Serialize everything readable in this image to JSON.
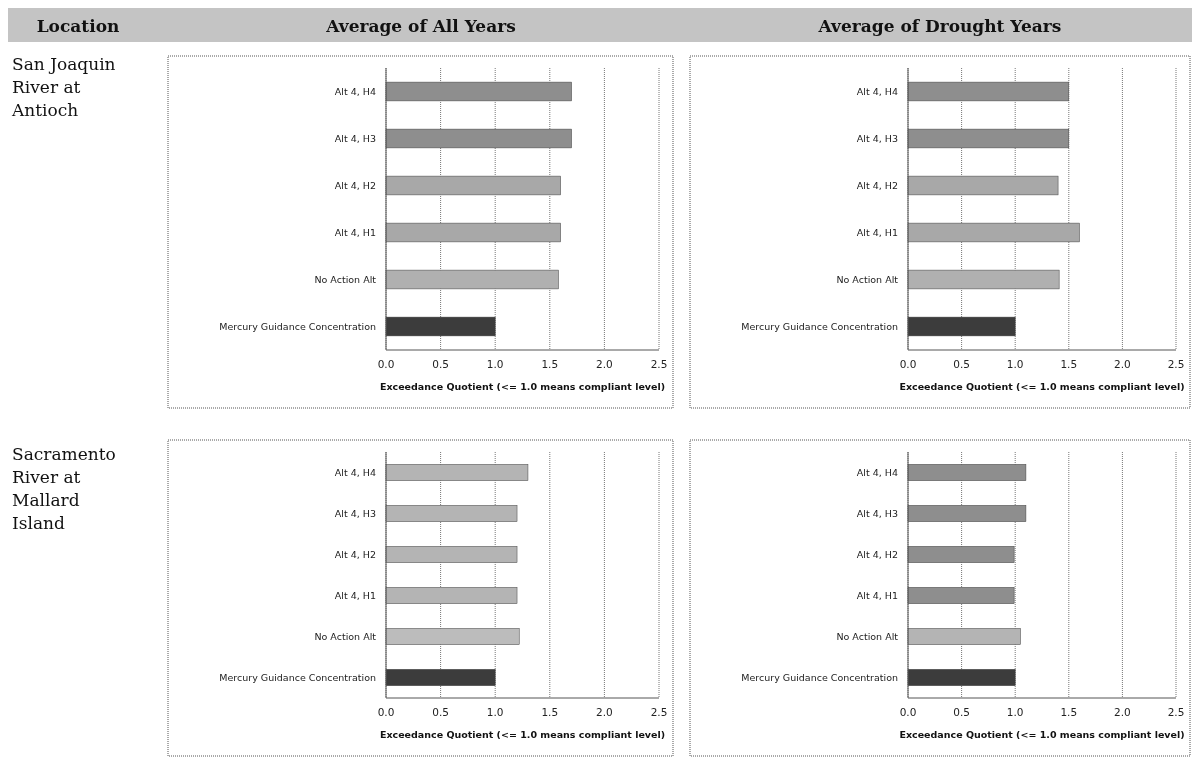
{
  "chart_data": [
    {
      "type": "other",
      "annotations": [
        "Location",
        "Average of All Years",
        "Average of Drought Years",
        "San Joaquin River at Antioch",
        "Sacramento River at Mallard Island"
      ]
    },
    {
      "type": "bar",
      "orientation": "horizontal",
      "categories": [
        "Alt 4, H4",
        "Alt 4, H3",
        "Alt 4, H2",
        "Alt 4, H1",
        "No Action Alt",
        "Mercury Guidance Concentration"
      ],
      "values": [
        1.7,
        1.7,
        1.6,
        1.6,
        1.58,
        1.0
      ],
      "colors": [
        "#8e8e8e",
        "#8e8e8e",
        "#a8a8a8",
        "#a8a8a8",
        "#b0b0b0",
        "#3c3c3c"
      ],
      "xlim": [
        0,
        2.5
      ],
      "xticks": [
        {
          "value": 0,
          "label": "0.0"
        },
        {
          "value": 0.5,
          "label": "0.5"
        },
        {
          "value": 1,
          "label": "1.0"
        },
        {
          "value": 1.5,
          "label": "1.5"
        },
        {
          "value": 2,
          "label": "2.0"
        },
        {
          "value": 2.5,
          "label": "2.5"
        }
      ],
      "xlabel": "Exceedance Quotient (<= 1.0 means compliant level)",
      "grid": "x"
    },
    {
      "type": "bar",
      "orientation": "horizontal",
      "categories": [
        "Alt 4, H4",
        "Alt 4, H3",
        "Alt 4, H2",
        "Alt 4, H1",
        "No Action Alt",
        "Mercury Guidance Concentration"
      ],
      "values": [
        1.5,
        1.5,
        1.4,
        1.6,
        1.41,
        1.0
      ],
      "colors": [
        "#8e8e8e",
        "#8e8e8e",
        "#a8a8a8",
        "#a8a8a8",
        "#b0b0b0",
        "#3c3c3c"
      ],
      "xlim": [
        0,
        2.5
      ],
      "xticks": [
        {
          "value": 0,
          "label": "0.0"
        },
        {
          "value": 0.5,
          "label": "0.5"
        },
        {
          "value": 1,
          "label": "1.0"
        },
        {
          "value": 1.5,
          "label": "1.5"
        },
        {
          "value": 2,
          "label": "2.0"
        },
        {
          "value": 2.5,
          "label": "2.5"
        }
      ],
      "xlabel": "Exceedance Quotient (<= 1.0 means compliant level)",
      "grid": "x"
    },
    {
      "type": "bar",
      "orientation": "horizontal",
      "categories": [
        "Alt 4, H4",
        "Alt 4, H3",
        "Alt 4, H2",
        "Alt 4, H1",
        "No Action Alt",
        "Mercury Guidance Concentration"
      ],
      "values": [
        1.3,
        1.2,
        1.2,
        1.2,
        1.22,
        1.0
      ],
      "colors": [
        "#b4b4b4",
        "#b4b4b4",
        "#b4b4b4",
        "#b4b4b4",
        "#bcbcbc",
        "#3c3c3c"
      ],
      "xlim": [
        0,
        2.5
      ],
      "xticks": [
        {
          "value": 0,
          "label": "0.0"
        },
        {
          "value": 0.5,
          "label": "0.5"
        },
        {
          "value": 1,
          "label": "1.0"
        },
        {
          "value": 1.5,
          "label": "1.5"
        },
        {
          "value": 2,
          "label": "2.0"
        },
        {
          "value": 2.5,
          "label": "2.5"
        }
      ],
      "xlabel": "Exceedance Quotient (<= 1.0 means compliant level)",
      "grid": "x"
    },
    {
      "type": "bar",
      "orientation": "horizontal",
      "categories": [
        "Alt 4, H4",
        "Alt 4, H3",
        "Alt 4, H2",
        "Alt 4, H1",
        "No Action Alt",
        "Mercury Guidance Concentration"
      ],
      "values": [
        1.1,
        1.1,
        0.99,
        0.99,
        1.05,
        1.0
      ],
      "colors": [
        "#8e8e8e",
        "#8e8e8e",
        "#8e8e8e",
        "#8e8e8e",
        "#b4b4b4",
        "#3c3c3c"
      ],
      "xlim": [
        0,
        2.5
      ],
      "xticks": [
        {
          "value": 0,
          "label": "0.0"
        },
        {
          "value": 0.5,
          "label": "0.5"
        },
        {
          "value": 1,
          "label": "1.0"
        },
        {
          "value": 1.5,
          "label": "1.5"
        },
        {
          "value": 2,
          "label": "2.0"
        },
        {
          "value": 2.5,
          "label": "2.5"
        }
      ],
      "xlabel": "Exceedance Quotient (<= 1.0 means compliant level)",
      "grid": "x"
    }
  ]
}
